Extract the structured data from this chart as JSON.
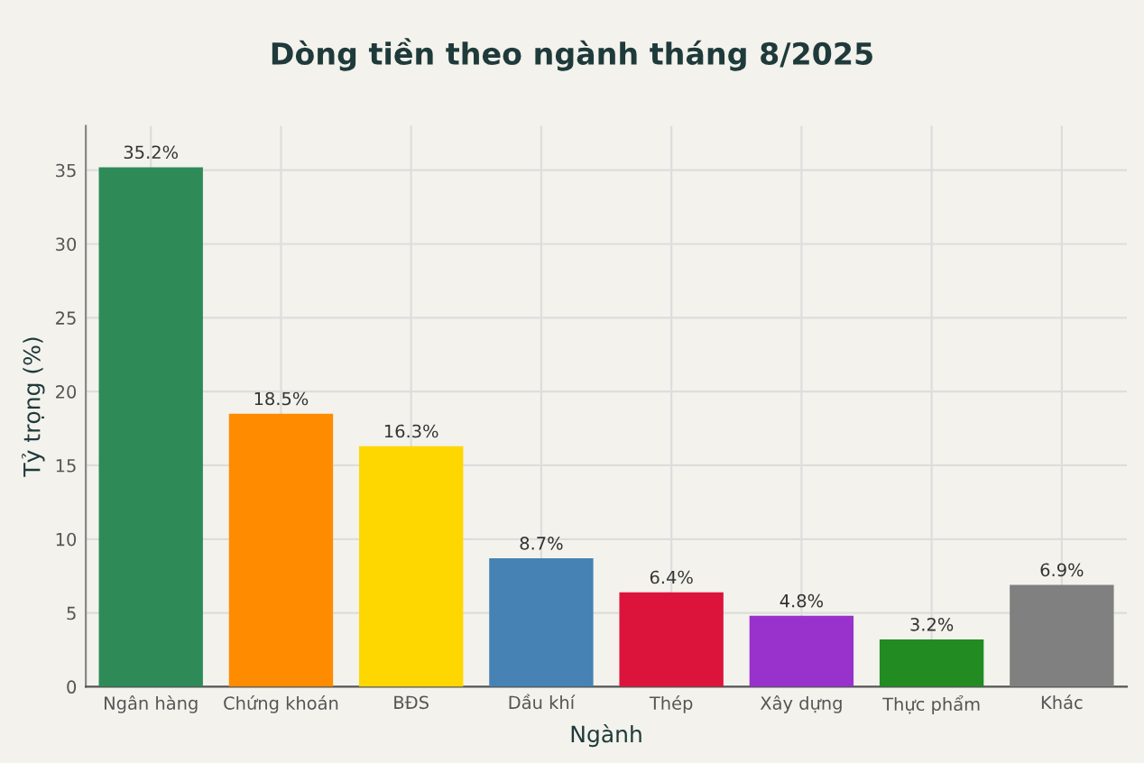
{
  "chart_data": {
    "type": "bar",
    "title": "Dòng tiền theo ngành tháng 8/2025",
    "xlabel": "Ngành",
    "ylabel": "Tỷ trọng (%)",
    "categories": [
      "Ngân hàng",
      "Chứng khoán",
      "BĐS",
      "Dầu khí",
      "Thép",
      "Xây dựng",
      "Thực phẩm",
      "Khác"
    ],
    "values": [
      35.2,
      18.5,
      16.3,
      8.7,
      6.4,
      4.8,
      3.2,
      6.9
    ],
    "colors": [
      "#2e8b57",
      "#ff8c00",
      "#ffd700",
      "#4682b4",
      "#dc143c",
      "#9932cc",
      "#228b22",
      "#808080"
    ],
    "value_labels": [
      "35.2%",
      "18.5%",
      "16.3%",
      "8.7%",
      "6.4%",
      "4.8%",
      "3.2%",
      "6.9%"
    ],
    "ylim": [
      0,
      38
    ],
    "yticks": [
      0,
      5,
      10,
      15,
      20,
      25,
      30,
      35
    ],
    "grid": true,
    "legend": false
  }
}
